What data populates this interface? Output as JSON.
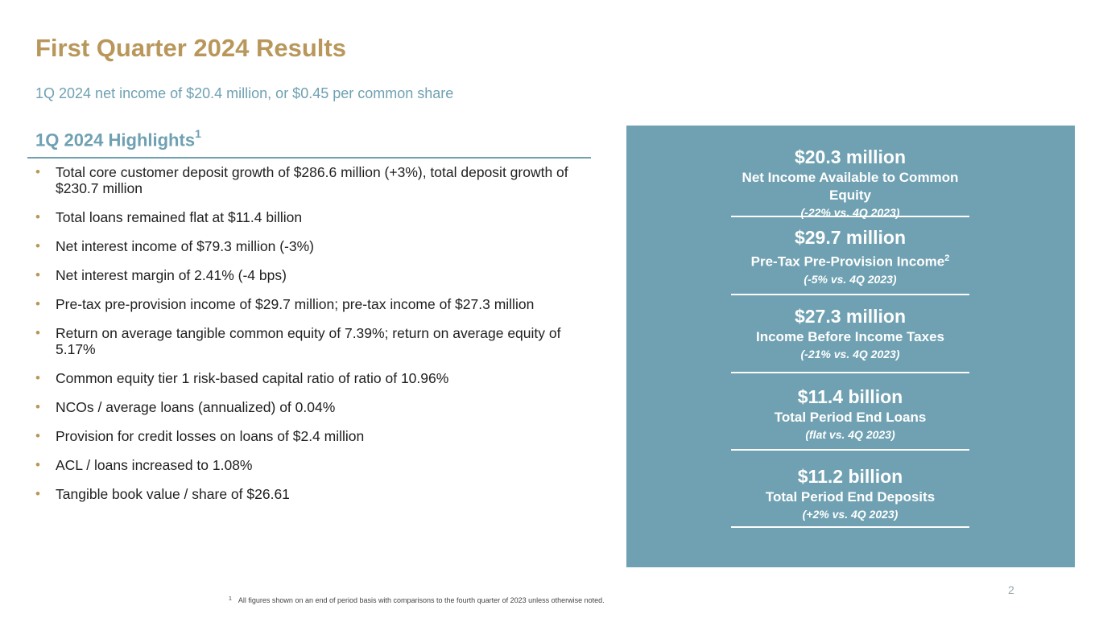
{
  "slide": {
    "title": "First Quarter 2024 Results",
    "subtitle": "1Q 2024 net income of $20.4 million, or $0.45 per common share",
    "page_number": "2"
  },
  "highlights": {
    "heading": "1Q 2024 Highlights",
    "heading_superscript": "1",
    "bullet_glyph": "•",
    "items": [
      "Total core customer deposit growth of $286.6 million (+3%), total deposit growth of $230.7 million",
      "Total loans remained flat at $11.4 billion",
      "Net interest income of $79.3 million (-3%)",
      "Net interest margin of 2.41% (-4 bps)",
      "Pre-tax pre-provision income of $29.7 million; pre-tax income of $27.3 million",
      "Return on average tangible common equity of 7.39%; return on average equity of 5.17%",
      "Common equity tier 1 risk-based capital ratio of ratio of 10.96%",
      "NCOs / average loans (annualized) of 0.04%",
      "Provision for credit losses on loans of $2.4 million",
      "ACL / loans increased to 1.08%",
      "Tangible book value / share of $26.61"
    ]
  },
  "stats_panel": {
    "background_color": "#6fa1b2",
    "stats": [
      {
        "value": "$20.3 million",
        "label": "Net Income Available to Common Equity",
        "label_superscript": "",
        "change": "(-22% vs. 4Q 2023)"
      },
      {
        "value": "$29.7 million",
        "label": "Pre-Tax Pre-Provision Income",
        "label_superscript": "2",
        "change": "(-5% vs. 4Q 2023)"
      },
      {
        "value": "$27.3 million",
        "label": "Income Before Income Taxes",
        "label_superscript": "",
        "change": "(-21% vs. 4Q 2023)"
      },
      {
        "value": "$11.4 billion",
        "label": "Total Period End Loans",
        "label_superscript": "",
        "change": "(flat vs. 4Q 2023)"
      },
      {
        "value": "$11.2 billion",
        "label": "Total Period End Deposits",
        "label_superscript": "",
        "change": "(+2% vs. 4Q 2023)"
      }
    ]
  },
  "footnote": {
    "marker": "1",
    "text": "All figures shown on an end of period basis with comparisons to the fourth quarter of 2023 unless otherwise noted."
  },
  "colors": {
    "title_gold": "#b9975b",
    "accent_teal": "#6fa1b2",
    "body_text": "#1f1f1f"
  }
}
